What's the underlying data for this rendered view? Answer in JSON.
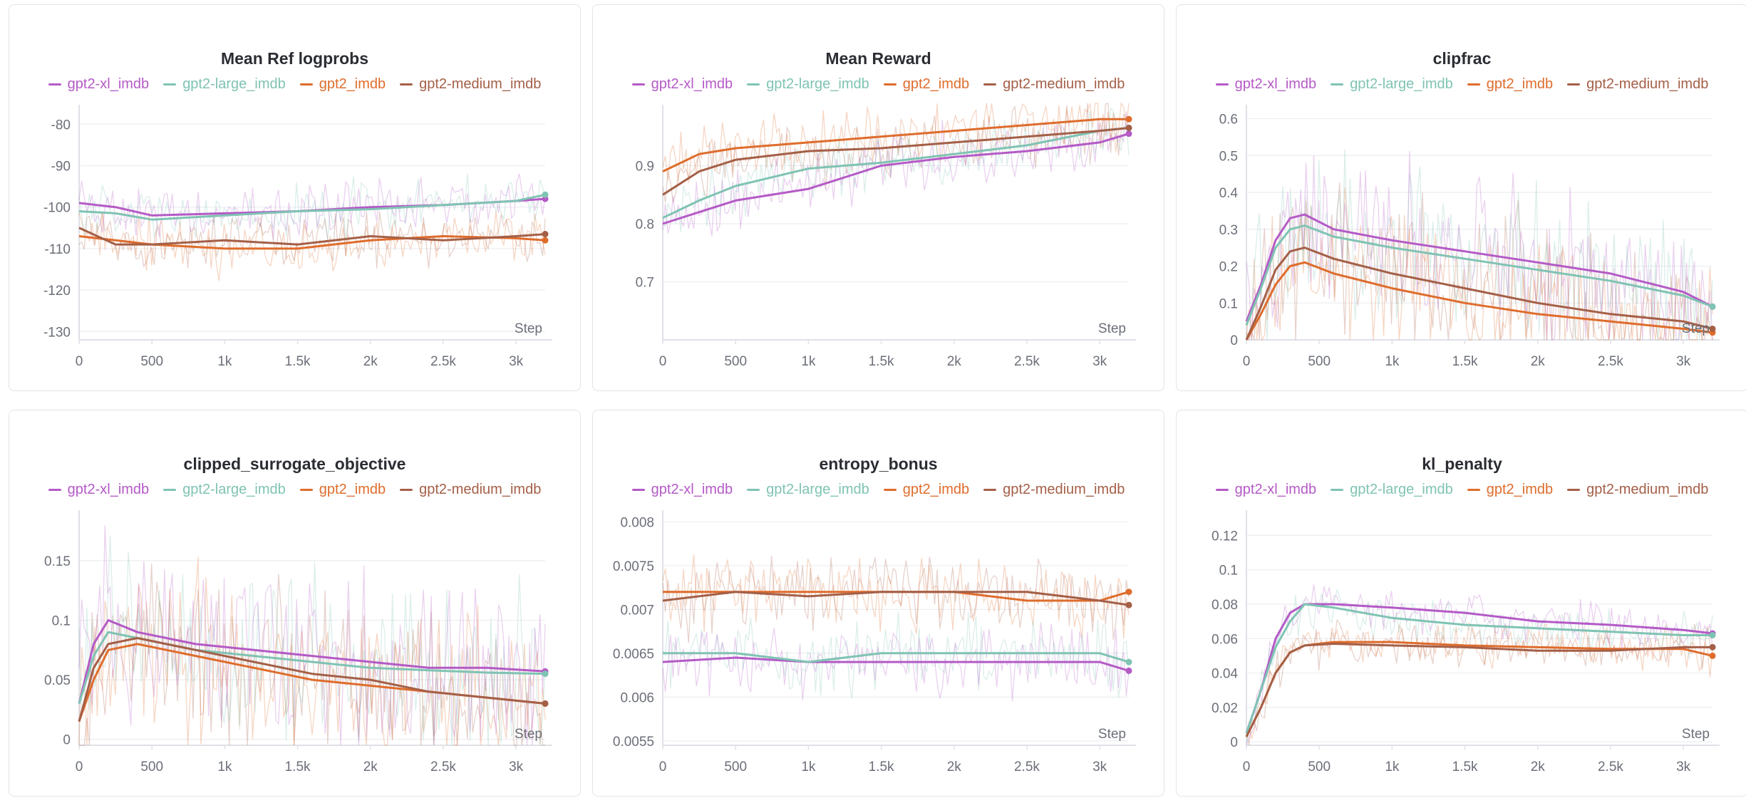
{
  "colors": {
    "gpt2-xl_imdb": "#b45ac6",
    "gpt2-large_imdb": "#7fc3b3",
    "gpt2_imdb": "#de6c2c",
    "gpt2-medium_imdb": "#a45f47",
    "grid": "#eceef2",
    "axis": "#dfe1e6",
    "tick": "#6b6f78"
  },
  "chart_data": [
    {
      "type": "line",
      "title": "Mean Ref logprobs",
      "xlabel": "Step",
      "xlim": [
        0,
        3200
      ],
      "ylim": [
        -132,
        -76
      ],
      "noise": 6,
      "xticks": [
        0,
        500,
        1000,
        1500,
        2000,
        2500,
        3000
      ],
      "xtick_labels": [
        "0",
        "500",
        "1k",
        "1.5k",
        "2k",
        "2.5k",
        "3k"
      ],
      "yticks": [
        -80,
        -90,
        -100,
        -110,
        -120,
        -130
      ],
      "ytick_labels": [
        "-80",
        "-90",
        "-100",
        "-110",
        "-120",
        "-130"
      ],
      "series": [
        {
          "name": "gpt2-xl_imdb",
          "x": [
            0,
            250,
            500,
            1000,
            1500,
            2000,
            2500,
            3000,
            3200
          ],
          "y": [
            -99,
            -100,
            -102,
            -101.5,
            -101,
            -100,
            -99.5,
            -98.5,
            -98
          ]
        },
        {
          "name": "gpt2-large_imdb",
          "x": [
            0,
            250,
            500,
            1000,
            1500,
            2000,
            2500,
            3000,
            3200
          ],
          "y": [
            -101,
            -101.5,
            -103,
            -102,
            -101,
            -100.5,
            -99.5,
            -98.5,
            -97
          ]
        },
        {
          "name": "gpt2_imdb",
          "x": [
            0,
            250,
            500,
            1000,
            1500,
            2000,
            2500,
            3000,
            3200
          ],
          "y": [
            -107,
            -108,
            -109,
            -110,
            -110,
            -108,
            -107,
            -107.5,
            -108
          ]
        },
        {
          "name": "gpt2-medium_imdb",
          "x": [
            0,
            250,
            500,
            1000,
            1500,
            2000,
            2500,
            3000,
            3200
          ],
          "y": [
            -105,
            -109,
            -109,
            -108,
            -109,
            -107,
            -108,
            -107,
            -106.5
          ]
        }
      ]
    },
    {
      "type": "line",
      "title": "Mean Reward",
      "xlabel": "Step",
      "xlim": [
        0,
        3200
      ],
      "ylim": [
        0.6,
        1.0
      ],
      "noise": 0.05,
      "xticks": [
        0,
        500,
        1000,
        1500,
        2000,
        2500,
        3000
      ],
      "xtick_labels": [
        "0",
        "500",
        "1k",
        "1.5k",
        "2k",
        "2.5k",
        "3k"
      ],
      "yticks": [
        0.7,
        0.8,
        0.9
      ],
      "ytick_labels": [
        "0.7",
        "0.8",
        "0.9"
      ],
      "series": [
        {
          "name": "gpt2-xl_imdb",
          "x": [
            0,
            250,
            500,
            1000,
            1500,
            2000,
            2500,
            3000,
            3200
          ],
          "y": [
            0.8,
            0.82,
            0.84,
            0.86,
            0.9,
            0.915,
            0.925,
            0.94,
            0.955
          ]
        },
        {
          "name": "gpt2-large_imdb",
          "x": [
            0,
            250,
            500,
            1000,
            1500,
            2000,
            2500,
            3000,
            3200
          ],
          "y": [
            0.81,
            0.84,
            0.865,
            0.895,
            0.905,
            0.92,
            0.935,
            0.96,
            0.965
          ]
        },
        {
          "name": "gpt2_imdb",
          "x": [
            0,
            250,
            500,
            1000,
            1500,
            2000,
            2500,
            3000,
            3200
          ],
          "y": [
            0.89,
            0.92,
            0.93,
            0.94,
            0.95,
            0.96,
            0.97,
            0.98,
            0.98
          ]
        },
        {
          "name": "gpt2-medium_imdb",
          "x": [
            0,
            250,
            500,
            1000,
            1500,
            2000,
            2500,
            3000,
            3200
          ],
          "y": [
            0.85,
            0.89,
            0.91,
            0.925,
            0.93,
            0.94,
            0.95,
            0.96,
            0.965
          ]
        }
      ]
    },
    {
      "type": "line",
      "title": "clipfrac",
      "xlabel": "Step",
      "xlim": [
        0,
        3200
      ],
      "ylim": [
        0,
        0.63
      ],
      "noise": 0.2,
      "xticks": [
        0,
        500,
        1000,
        1500,
        2000,
        2500,
        3000
      ],
      "xtick_labels": [
        "0",
        "500",
        "1k",
        "1.5k",
        "2k",
        "2.5k",
        "3k"
      ],
      "yticks": [
        0,
        0.1,
        0.2,
        0.3,
        0.4,
        0.5,
        0.6
      ],
      "ytick_labels": [
        "0",
        "0.1",
        "0.2",
        "0.3",
        "0.4",
        "0.5",
        "0.6"
      ],
      "series": [
        {
          "name": "gpt2-xl_imdb",
          "x": [
            0,
            100,
            200,
            300,
            400,
            600,
            1000,
            1500,
            2000,
            2500,
            3000,
            3200
          ],
          "y": [
            0.05,
            0.15,
            0.27,
            0.33,
            0.34,
            0.3,
            0.27,
            0.24,
            0.21,
            0.18,
            0.13,
            0.09
          ]
        },
        {
          "name": "gpt2-large_imdb",
          "x": [
            0,
            100,
            200,
            300,
            400,
            600,
            1000,
            1500,
            2000,
            2500,
            3000,
            3200
          ],
          "y": [
            0.04,
            0.14,
            0.25,
            0.3,
            0.31,
            0.28,
            0.25,
            0.22,
            0.19,
            0.16,
            0.12,
            0.09
          ]
        },
        {
          "name": "gpt2_imdb",
          "x": [
            0,
            100,
            200,
            300,
            400,
            600,
            1000,
            1500,
            2000,
            2500,
            3000,
            3200
          ],
          "y": [
            0.0,
            0.07,
            0.15,
            0.2,
            0.21,
            0.18,
            0.14,
            0.1,
            0.07,
            0.05,
            0.03,
            0.02
          ]
        },
        {
          "name": "gpt2-medium_imdb",
          "x": [
            0,
            100,
            200,
            300,
            400,
            600,
            1000,
            1500,
            2000,
            2500,
            3000,
            3200
          ],
          "y": [
            0.0,
            0.09,
            0.19,
            0.24,
            0.25,
            0.22,
            0.18,
            0.14,
            0.1,
            0.07,
            0.05,
            0.03
          ]
        }
      ]
    },
    {
      "type": "line",
      "title": "clipped_surrogate_objective",
      "xlabel": "Step",
      "xlim": [
        0,
        3200
      ],
      "ylim": [
        -0.005,
        0.19
      ],
      "noise": 0.07,
      "xticks": [
        0,
        500,
        1000,
        1500,
        2000,
        2500,
        3000
      ],
      "xtick_labels": [
        "0",
        "500",
        "1k",
        "1.5k",
        "2k",
        "2.5k",
        "3k"
      ],
      "yticks": [
        0,
        0.05,
        0.1,
        0.15
      ],
      "ytick_labels": [
        "0",
        "0.05",
        "0.1",
        "0.15"
      ],
      "series": [
        {
          "name": "gpt2-xl_imdb",
          "x": [
            0,
            100,
            200,
            400,
            800,
            1200,
            1600,
            2000,
            2400,
            2800,
            3200
          ],
          "y": [
            0.03,
            0.08,
            0.1,
            0.09,
            0.08,
            0.075,
            0.07,
            0.065,
            0.06,
            0.06,
            0.057
          ]
        },
        {
          "name": "gpt2-large_imdb",
          "x": [
            0,
            100,
            200,
            400,
            800,
            1200,
            1600,
            2000,
            2400,
            2800,
            3200
          ],
          "y": [
            0.03,
            0.07,
            0.09,
            0.085,
            0.075,
            0.07,
            0.065,
            0.06,
            0.058,
            0.056,
            0.055
          ]
        },
        {
          "name": "gpt2_imdb",
          "x": [
            0,
            100,
            200,
            400,
            800,
            1200,
            1600,
            2000,
            2400,
            2800,
            3200
          ],
          "y": [
            0.015,
            0.05,
            0.075,
            0.08,
            0.07,
            0.06,
            0.05,
            0.045,
            0.04,
            0.035,
            0.03
          ]
        },
        {
          "name": "gpt2-medium_imdb",
          "x": [
            0,
            100,
            200,
            400,
            800,
            1200,
            1600,
            2000,
            2400,
            2800,
            3200
          ],
          "y": [
            0.015,
            0.06,
            0.08,
            0.085,
            0.075,
            0.065,
            0.055,
            0.05,
            0.04,
            0.035,
            0.03
          ]
        }
      ]
    },
    {
      "type": "line",
      "title": "entropy_bonus",
      "xlabel": "Step",
      "xlim": [
        0,
        3200
      ],
      "ylim": [
        0.00545,
        0.0081
      ],
      "noise": 0.0004,
      "xticks": [
        0,
        500,
        1000,
        1500,
        2000,
        2500,
        3000
      ],
      "xtick_labels": [
        "0",
        "500",
        "1k",
        "1.5k",
        "2k",
        "2.5k",
        "3k"
      ],
      "yticks": [
        0.0055,
        0.006,
        0.0065,
        0.007,
        0.0075,
        0.008
      ],
      "ytick_labels": [
        "0.0055",
        "0.006",
        "0.0065",
        "0.007",
        "0.0075",
        "0.008"
      ],
      "series": [
        {
          "name": "gpt2-xl_imdb",
          "x": [
            0,
            500,
            1000,
            1500,
            2000,
            2500,
            3000,
            3200
          ],
          "y": [
            0.0064,
            0.00645,
            0.0064,
            0.0064,
            0.0064,
            0.0064,
            0.0064,
            0.0063
          ]
        },
        {
          "name": "gpt2-large_imdb",
          "x": [
            0,
            500,
            1000,
            1500,
            2000,
            2500,
            3000,
            3200
          ],
          "y": [
            0.0065,
            0.0065,
            0.0064,
            0.0065,
            0.0065,
            0.0065,
            0.0065,
            0.0064
          ]
        },
        {
          "name": "gpt2_imdb",
          "x": [
            0,
            500,
            1000,
            1500,
            2000,
            2500,
            3000,
            3200
          ],
          "y": [
            0.0072,
            0.0072,
            0.0072,
            0.0072,
            0.0072,
            0.0071,
            0.0071,
            0.0072
          ]
        },
        {
          "name": "gpt2-medium_imdb",
          "x": [
            0,
            500,
            1000,
            1500,
            2000,
            2500,
            3000,
            3200
          ],
          "y": [
            0.0071,
            0.0072,
            0.00715,
            0.0072,
            0.0072,
            0.0072,
            0.0071,
            0.00705
          ]
        }
      ]
    },
    {
      "type": "line",
      "title": "kl_penalty",
      "xlabel": "Step",
      "xlim": [
        0,
        3200
      ],
      "ylim": [
        -0.002,
        0.133
      ],
      "noise": 0.012,
      "xticks": [
        0,
        500,
        1000,
        1500,
        2000,
        2500,
        3000
      ],
      "xtick_labels": [
        "0",
        "500",
        "1k",
        "1.5k",
        "2k",
        "2.5k",
        "3k"
      ],
      "yticks": [
        0,
        0.02,
        0.04,
        0.06,
        0.08,
        0.1,
        0.12
      ],
      "ytick_labels": [
        "0",
        "0.02",
        "0.04",
        "0.06",
        "0.08",
        "0.1",
        "0.12"
      ],
      "series": [
        {
          "name": "gpt2-xl_imdb",
          "x": [
            0,
            100,
            200,
            300,
            400,
            600,
            1000,
            1500,
            2000,
            2500,
            3000,
            3200
          ],
          "y": [
            0.005,
            0.03,
            0.06,
            0.075,
            0.08,
            0.08,
            0.078,
            0.075,
            0.07,
            0.068,
            0.065,
            0.063
          ]
        },
        {
          "name": "gpt2-large_imdb",
          "x": [
            0,
            100,
            200,
            300,
            400,
            600,
            1000,
            1500,
            2000,
            2500,
            3000,
            3200
          ],
          "y": [
            0.005,
            0.03,
            0.055,
            0.07,
            0.08,
            0.078,
            0.072,
            0.068,
            0.066,
            0.064,
            0.062,
            0.062
          ]
        },
        {
          "name": "gpt2_imdb",
          "x": [
            0,
            100,
            200,
            300,
            400,
            600,
            1000,
            1500,
            2000,
            2500,
            3000,
            3200
          ],
          "y": [
            0.003,
            0.02,
            0.04,
            0.052,
            0.056,
            0.058,
            0.058,
            0.056,
            0.055,
            0.054,
            0.054,
            0.05
          ]
        },
        {
          "name": "gpt2-medium_imdb",
          "x": [
            0,
            100,
            200,
            300,
            400,
            600,
            1000,
            1500,
            2000,
            2500,
            3000,
            3200
          ],
          "y": [
            0.003,
            0.02,
            0.04,
            0.052,
            0.056,
            0.057,
            0.056,
            0.055,
            0.053,
            0.053,
            0.055,
            0.055
          ]
        }
      ]
    }
  ]
}
